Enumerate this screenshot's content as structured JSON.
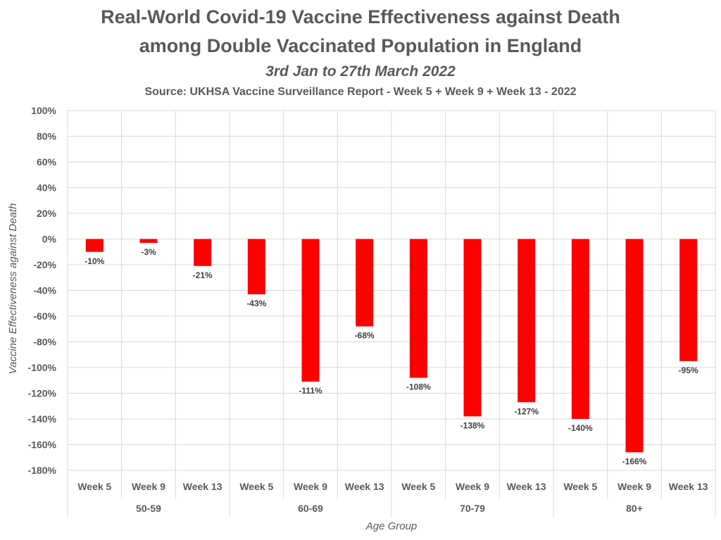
{
  "header": {
    "title_line1": "Real-World Covid-19 Vaccine Effectiveness against Death",
    "title_line2": "among Double Vaccinated Population in England",
    "subtitle": "3rd Jan to 27th March 2022",
    "source": "Source: UKHSA Vaccine Surveillance Report - Week 5 + Week 9 + Week 13 - 2022"
  },
  "chart_data": {
    "type": "bar",
    "title": "Real-World Covid-19 Vaccine Effectiveness against Death among Double Vaccinated Population in England",
    "subtitle": "3rd Jan to 27th March 2022",
    "xlabel": "Age Group",
    "ylabel": "Vaccine Effectiveness against Death",
    "ylim": [
      -180,
      100
    ],
    "y_tick_step": 20,
    "y_tick_format": "percent",
    "grid": true,
    "legend": "none",
    "bar_color": "#ff0000",
    "groups": [
      {
        "name": "50-59",
        "categories": [
          "Week 5",
          "Week 9",
          "Week 13"
        ],
        "values": [
          -10,
          -3,
          -21
        ],
        "labels": [
          "-10%",
          "-3%",
          "-21%"
        ]
      },
      {
        "name": "60-69",
        "categories": [
          "Week 5",
          "Week 9",
          "Week 13"
        ],
        "values": [
          -43,
          -111,
          -68
        ],
        "labels": [
          "-43%",
          "-111%",
          "-68%"
        ]
      },
      {
        "name": "70-79",
        "categories": [
          "Week 5",
          "Week 9",
          "Week 13"
        ],
        "values": [
          -108,
          -138,
          -127
        ],
        "labels": [
          "-108%",
          "-138%",
          "-127%"
        ]
      },
      {
        "name": "80+",
        "categories": [
          "Week 5",
          "Week 9",
          "Week 13"
        ],
        "values": [
          -140,
          -166,
          -95
        ],
        "labels": [
          "-140%",
          "-166%",
          "-95%"
        ]
      }
    ]
  }
}
